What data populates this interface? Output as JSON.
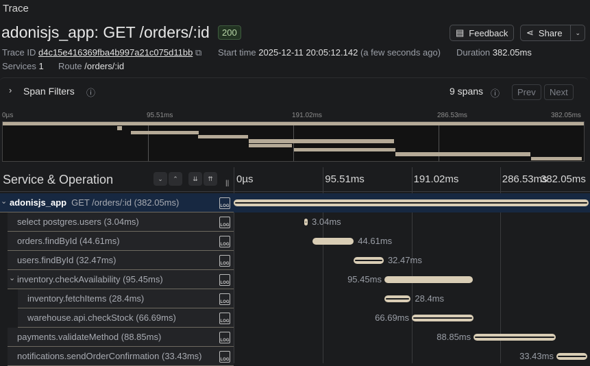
{
  "page_title": "Trace",
  "trace": {
    "service": "adonisjs_app",
    "title": "adonisjs_app: GET /orders/:id",
    "status": "200",
    "trace_id_label": "Trace ID",
    "trace_id": "d4c15e416369fba4b997a21c075d11bb",
    "start_label": "Start time",
    "start_time": "2025-12-11 20:05:12.142",
    "start_relative": "(a few seconds ago)",
    "duration_label": "Duration",
    "duration": "382.05ms",
    "services_label": "Services",
    "services": "1",
    "route_label": "Route",
    "route": "/orders/:id"
  },
  "toolbar": {
    "feedback": "Feedback",
    "share": "Share"
  },
  "filters": {
    "label": "Span Filters",
    "span_count": "9 spans",
    "prev": "Prev",
    "next": "Next"
  },
  "ticks": [
    "0µs",
    "95.51ms",
    "191.02ms",
    "286.53ms",
    "382.05ms"
  ],
  "header": {
    "title": "Service & Operation"
  },
  "total_ms": 382.05,
  "bar_color": "#d9cdb5",
  "selected_row_color": "#172841",
  "spans": [
    {
      "service": "adonisjs_app",
      "label": "GET /orders/:id (382.05ms)",
      "depth": 0,
      "start_ms": 0,
      "duration_ms": 382.05,
      "duration": "",
      "expanded": true
    },
    {
      "label": "select postgres.users (3.04ms)",
      "depth": 1,
      "start_ms": 75.4,
      "duration_ms": 3.04,
      "duration": "3.04ms"
    },
    {
      "label": "orders.findById (44.61ms)",
      "depth": 1,
      "start_ms": 84.2,
      "duration_ms": 44.61,
      "duration": "44.61ms"
    },
    {
      "label": "users.findById (32.47ms)",
      "depth": 1,
      "start_ms": 128.6,
      "duration_ms": 32.47,
      "duration": "32.47ms"
    },
    {
      "label": "inventory.checkAvailability (95.45ms)",
      "depth": 1,
      "start_ms": 161.8,
      "duration_ms": 95.45,
      "duration": "95.45ms",
      "expanded": true
    },
    {
      "label": "inventory.fetchItems (28.4ms)",
      "depth": 2,
      "start_ms": 161.8,
      "duration_ms": 28.4,
      "duration": "28.4ms"
    },
    {
      "label": "warehouse.api.checkStock (66.69ms)",
      "depth": 2,
      "start_ms": 191.4,
      "duration_ms": 66.69,
      "duration": "66.69ms"
    },
    {
      "label": "payments.validateMethod (88.85ms)",
      "depth": 1,
      "start_ms": 258.0,
      "duration_ms": 88.85,
      "duration": "88.85ms"
    },
    {
      "label": "notifications.sendOrderConfirmation (33.43ms)",
      "depth": 1,
      "start_ms": 347.3,
      "duration_ms": 33.43,
      "duration": "33.43ms"
    }
  ]
}
